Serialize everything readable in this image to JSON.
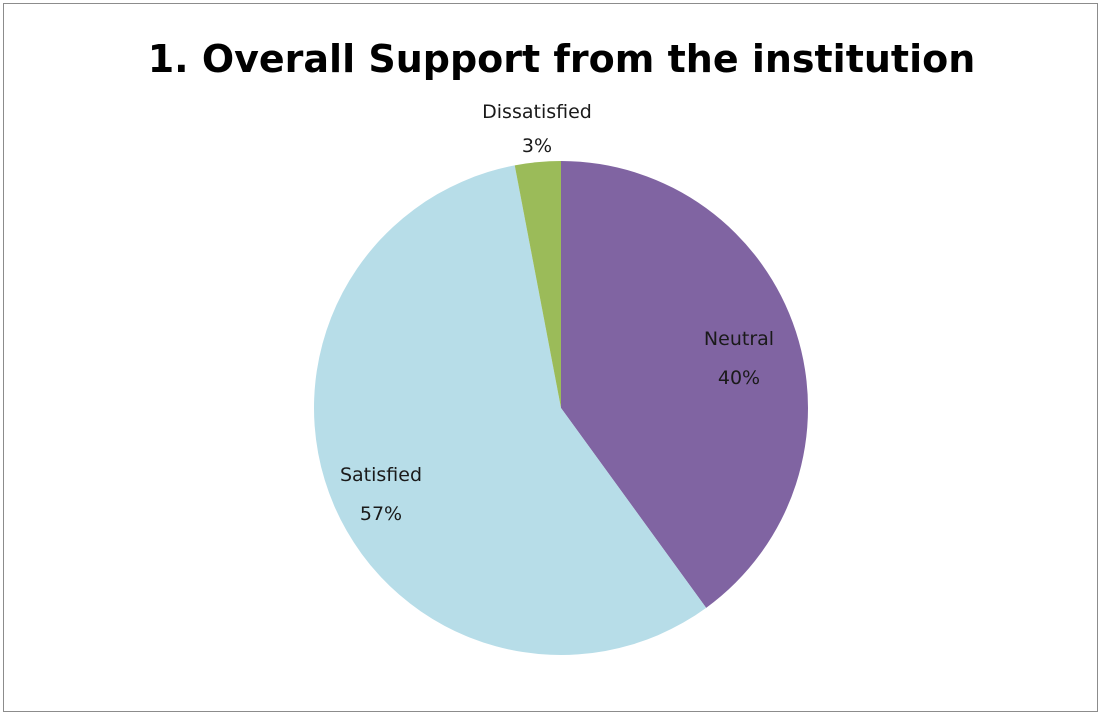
{
  "chart_data": {
    "type": "pie",
    "title": "1. Overall Support from the institution",
    "slices": [
      {
        "name": "Neutral",
        "value": 40,
        "percent_label": "40%",
        "color": "#8064a2"
      },
      {
        "name": "Satisfied",
        "value": 57,
        "percent_label": "57%",
        "color": "#b7dde8"
      },
      {
        "name": "Dissatisfied",
        "value": 3,
        "percent_label": "3%",
        "color": "#9bbb59"
      }
    ],
    "start_angle_deg": 0,
    "direction": "clockwise",
    "legend": "none",
    "data_labels": "category name and percentage"
  }
}
